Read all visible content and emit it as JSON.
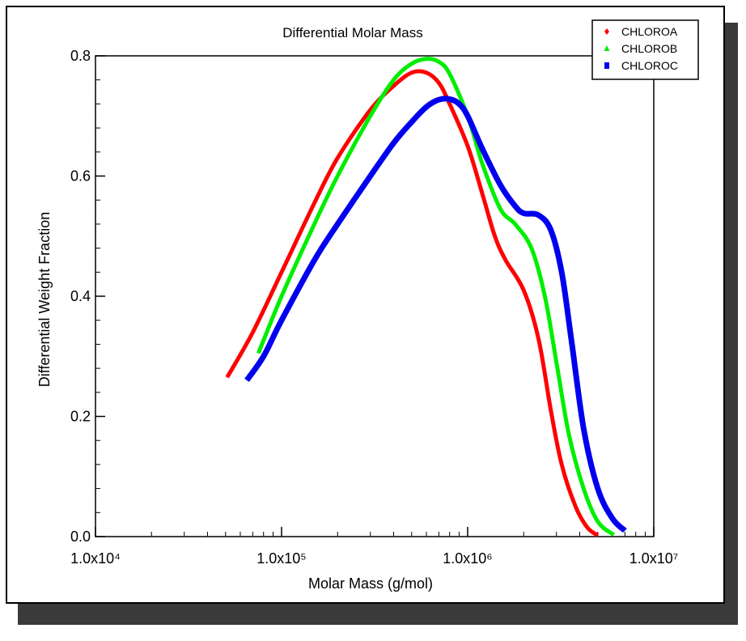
{
  "chart_data": {
    "type": "line",
    "title": "Differential Molar Mass",
    "xlabel": "Molar Mass (g/mol)",
    "ylabel": "Differential Weight Fraction",
    "x_scale": "log",
    "xlim": [
      10000,
      10000000
    ],
    "ylim": [
      0,
      0.8
    ],
    "x_ticks": [
      10000,
      100000,
      1000000,
      10000000
    ],
    "x_tick_labels": [
      "1.0x10⁴",
      "1.0x10⁵",
      "1.0x10⁶",
      "1.0x10⁷"
    ],
    "y_ticks": [
      0,
      0.2,
      0.4,
      0.6,
      0.8
    ],
    "y_tick_labels": [
      "0.0",
      "0.2",
      "0.4",
      "0.6",
      "0.8"
    ],
    "grid": false,
    "legend_position": "top-right",
    "series": [
      {
        "name": "CHLOROA",
        "color": "#ff0000",
        "marker": "diamond",
        "points": [
          [
            51000,
            0.265
          ],
          [
            70000,
            0.34
          ],
          [
            100000,
            0.44
          ],
          [
            150000,
            0.555
          ],
          [
            200000,
            0.63
          ],
          [
            300000,
            0.71
          ],
          [
            400000,
            0.75
          ],
          [
            500000,
            0.772
          ],
          [
            600000,
            0.772
          ],
          [
            700000,
            0.755
          ],
          [
            800000,
            0.72
          ],
          [
            1000000,
            0.65
          ],
          [
            1200000,
            0.57
          ],
          [
            1400000,
            0.5
          ],
          [
            1600000,
            0.46
          ],
          [
            2000000,
            0.41
          ],
          [
            2400000,
            0.33
          ],
          [
            2800000,
            0.21
          ],
          [
            3200000,
            0.12
          ],
          [
            3800000,
            0.05
          ],
          [
            4400000,
            0.015
          ],
          [
            5000000,
            0.002
          ]
        ]
      },
      {
        "name": "CHLOROB",
        "color": "#00ee00",
        "marker": "triangle",
        "points": [
          [
            75000,
            0.305
          ],
          [
            100000,
            0.4
          ],
          [
            150000,
            0.52
          ],
          [
            200000,
            0.6
          ],
          [
            300000,
            0.7
          ],
          [
            400000,
            0.76
          ],
          [
            500000,
            0.787
          ],
          [
            600000,
            0.795
          ],
          [
            700000,
            0.79
          ],
          [
            800000,
            0.77
          ],
          [
            1000000,
            0.7
          ],
          [
            1200000,
            0.62
          ],
          [
            1500000,
            0.545
          ],
          [
            1800000,
            0.52
          ],
          [
            2200000,
            0.48
          ],
          [
            2600000,
            0.4
          ],
          [
            3000000,
            0.29
          ],
          [
            3500000,
            0.17
          ],
          [
            4200000,
            0.08
          ],
          [
            5000000,
            0.025
          ],
          [
            6100000,
            0.003
          ]
        ]
      },
      {
        "name": "CHLOROC",
        "color": "#0000ee",
        "marker": "square",
        "points": [
          [
            65000,
            0.26
          ],
          [
            80000,
            0.3
          ],
          [
            100000,
            0.36
          ],
          [
            150000,
            0.46
          ],
          [
            200000,
            0.52
          ],
          [
            300000,
            0.6
          ],
          [
            400000,
            0.655
          ],
          [
            500000,
            0.69
          ],
          [
            600000,
            0.715
          ],
          [
            700000,
            0.727
          ],
          [
            800000,
            0.728
          ],
          [
            900000,
            0.72
          ],
          [
            1000000,
            0.7
          ],
          [
            1200000,
            0.645
          ],
          [
            1500000,
            0.585
          ],
          [
            1800000,
            0.55
          ],
          [
            2000000,
            0.538
          ],
          [
            2400000,
            0.535
          ],
          [
            2800000,
            0.51
          ],
          [
            3200000,
            0.44
          ],
          [
            3600000,
            0.33
          ],
          [
            4200000,
            0.18
          ],
          [
            5000000,
            0.08
          ],
          [
            6000000,
            0.03
          ],
          [
            7000000,
            0.01
          ]
        ]
      }
    ]
  }
}
